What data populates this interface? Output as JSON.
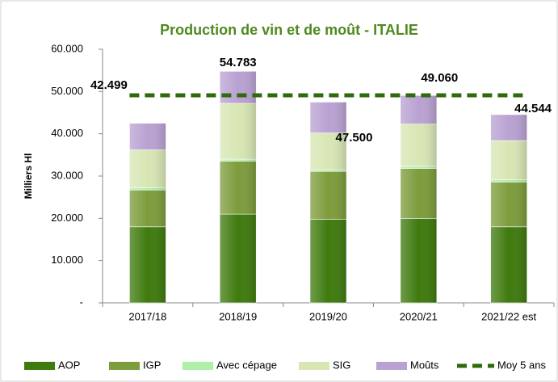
{
  "chart_data": {
    "type": "bar",
    "stacked": true,
    "title": "Production de vin et de moût - ITALIE",
    "y_label": "Milliers Hl",
    "categories": [
      "2017/18",
      "2018/19",
      "2019/20",
      "2020/21",
      "2021/22 est"
    ],
    "series": [
      {
        "name": "AOP",
        "color": "#3f7a0e",
        "values": [
          18000,
          21000,
          19800,
          20000,
          18000
        ]
      },
      {
        "name": "IGP",
        "color": "#7d9c3c",
        "values": [
          8700,
          12500,
          11300,
          11800,
          10600
        ]
      },
      {
        "name": "Avec cépage",
        "color": "#aef0a8",
        "values": [
          500,
          500,
          400,
          500,
          500
        ]
      },
      {
        "name": "SIG",
        "color": "#d8e6b4",
        "values": [
          9000,
          13200,
          8700,
          10000,
          9300
        ]
      },
      {
        "name": "Moûts",
        "color": "#b9a2d2",
        "values": [
          6299,
          7583,
          7300,
          6760,
          6144
        ]
      },
      {
        "name": "Moy 5 ans",
        "type": "line",
        "dashed": true,
        "color": "#2f6b0a",
        "values": [
          49100,
          49100,
          49100,
          49100,
          49100
        ]
      }
    ],
    "totals": [
      42499,
      54783,
      47500,
      49060,
      44544
    ],
    "value_labels": [
      "42.499",
      "54.783",
      "47.500",
      "49.060",
      "44.544"
    ],
    "ylim": [
      0,
      60000
    ],
    "yticks": [
      {
        "value": 0,
        "label": "-"
      },
      {
        "value": 10000,
        "label": "10.000"
      },
      {
        "value": 20000,
        "label": "20.000"
      },
      {
        "value": 30000,
        "label": "30.000"
      },
      {
        "value": 40000,
        "label": "40.000"
      },
      {
        "value": 50000,
        "label": "50.000"
      },
      {
        "value": 60000,
        "label": "60.000"
      }
    ],
    "grid": false,
    "legend": "bottom"
  }
}
